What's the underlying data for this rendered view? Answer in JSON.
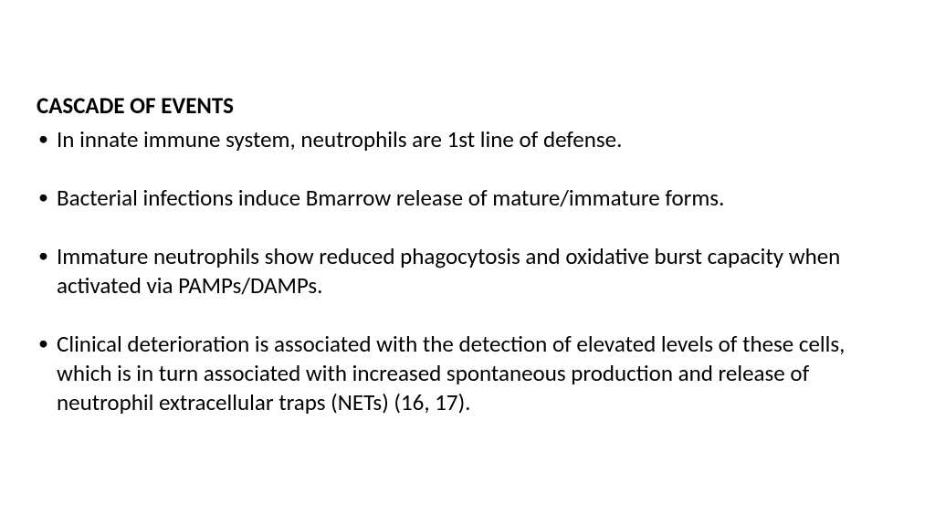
{
  "title": "CASCADE OF EVENTS",
  "bullets": [
    "In innate immune system, neutrophils are 1st line of defense.",
    "Bacterial infections induce Bmarrow release of mature/immature forms.",
    "Immature neutrophils show reduced phagocytosis and oxidative burst capacity when activated via PAMPs/DAMPs.",
    "Clinical deterioration is associated with the detection of elevated levels of these cells, which is in turn associated with increased spontaneous production and release of neutrophil extracellular traps (NETs) (16, 17)."
  ],
  "title_fontsize": 25,
  "bullet_fontsize": 25,
  "text_color": "#000000",
  "background_color": "#ffffff"
}
